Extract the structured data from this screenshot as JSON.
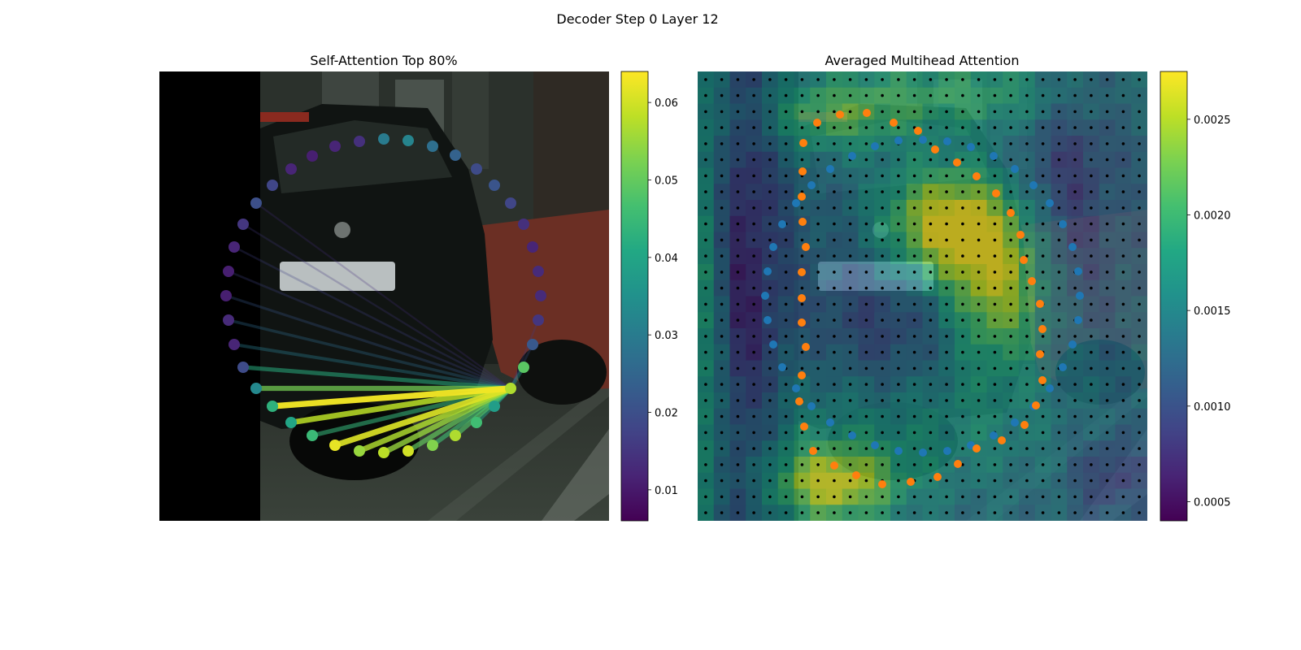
{
  "suptitle": "Decoder Step 0 Layer 12",
  "colors": {
    "viridis": [
      "#440154",
      "#482475",
      "#414487",
      "#355f8d",
      "#2a788e",
      "#21918c",
      "#22a884",
      "#44bf70",
      "#7ad151",
      "#bddf26",
      "#fde725"
    ],
    "blue_points": "#1f77b4",
    "orange_points": "#ff7f0e",
    "grid_dots": "#000000"
  },
  "chart_data": [
    {
      "type": "scatter",
      "title": "Self-Attention Top 80%",
      "background": "photo",
      "colorbar": {
        "min": 0.006,
        "max": 0.064,
        "ticks": [
          0.01,
          0.02,
          0.03,
          0.04,
          0.05,
          0.06
        ],
        "tick_labels": [
          "0.01",
          "0.02",
          "0.03",
          "0.04",
          "0.05",
          "0.06"
        ]
      },
      "query_index": 29,
      "points": [
        {
          "x": 335,
          "y": 228,
          "v": 0.018
        },
        {
          "x": 358,
          "y": 208,
          "v": 0.012
        },
        {
          "x": 384,
          "y": 192,
          "v": 0.011
        },
        {
          "x": 412,
          "y": 180,
          "v": 0.012
        },
        {
          "x": 442,
          "y": 174,
          "v": 0.014
        },
        {
          "x": 472,
          "y": 171,
          "v": 0.03
        },
        {
          "x": 502,
          "y": 173,
          "v": 0.032
        },
        {
          "x": 532,
          "y": 180,
          "v": 0.027
        },
        {
          "x": 560,
          "y": 191,
          "v": 0.024
        },
        {
          "x": 586,
          "y": 208,
          "v": 0.019
        },
        {
          "x": 608,
          "y": 228,
          "v": 0.021
        },
        {
          "x": 628,
          "y": 250,
          "v": 0.018
        },
        {
          "x": 644,
          "y": 276,
          "v": 0.014
        },
        {
          "x": 655,
          "y": 304,
          "v": 0.012
        },
        {
          "x": 662,
          "y": 334,
          "v": 0.013
        },
        {
          "x": 665,
          "y": 364,
          "v": 0.013
        },
        {
          "x": 662,
          "y": 394,
          "v": 0.015
        },
        {
          "x": 655,
          "y": 424,
          "v": 0.022
        },
        {
          "x": 315,
          "y": 250,
          "v": 0.02
        },
        {
          "x": 299,
          "y": 276,
          "v": 0.015
        },
        {
          "x": 288,
          "y": 304,
          "v": 0.012
        },
        {
          "x": 281,
          "y": 334,
          "v": 0.011
        },
        {
          "x": 278,
          "y": 364,
          "v": 0.011
        },
        {
          "x": 281,
          "y": 394,
          "v": 0.013
        },
        {
          "x": 288,
          "y": 424,
          "v": 0.012
        },
        {
          "x": 299,
          "y": 452,
          "v": 0.019
        },
        {
          "x": 315,
          "y": 478,
          "v": 0.033
        },
        {
          "x": 335,
          "y": 500,
          "v": 0.043
        },
        {
          "x": 358,
          "y": 520,
          "v": 0.04
        },
        {
          "x": 628,
          "y": 478,
          "v": 0.057
        },
        {
          "x": 644,
          "y": 452,
          "v": 0.049
        },
        {
          "x": 608,
          "y": 500,
          "v": 0.038
        },
        {
          "x": 586,
          "y": 520,
          "v": 0.046
        },
        {
          "x": 560,
          "y": 536,
          "v": 0.057
        },
        {
          "x": 532,
          "y": 548,
          "v": 0.053
        },
        {
          "x": 502,
          "y": 555,
          "v": 0.06
        },
        {
          "x": 472,
          "y": 557,
          "v": 0.058
        },
        {
          "x": 442,
          "y": 555,
          "v": 0.055
        },
        {
          "x": 412,
          "y": 548,
          "v": 0.062
        },
        {
          "x": 384,
          "y": 536,
          "v": 0.045
        }
      ],
      "edges": [
        {
          "to": 27,
          "v": 0.063
        },
        {
          "to": 28,
          "v": 0.058
        },
        {
          "to": 26,
          "v": 0.052
        },
        {
          "to": 38,
          "v": 0.061
        },
        {
          "to": 37,
          "v": 0.057
        },
        {
          "to": 36,
          "v": 0.055
        },
        {
          "to": 35,
          "v": 0.05
        },
        {
          "to": 34,
          "v": 0.046
        },
        {
          "to": 33,
          "v": 0.048
        },
        {
          "to": 39,
          "v": 0.044
        },
        {
          "to": 32,
          "v": 0.04
        },
        {
          "to": 31,
          "v": 0.036
        },
        {
          "to": 25,
          "v": 0.042
        },
        {
          "to": 24,
          "v": 0.03
        },
        {
          "to": 23,
          "v": 0.026
        },
        {
          "to": 22,
          "v": 0.022
        },
        {
          "to": 21,
          "v": 0.018
        },
        {
          "to": 20,
          "v": 0.017
        },
        {
          "to": 19,
          "v": 0.015
        },
        {
          "to": 18,
          "v": 0.014
        },
        {
          "to": 17,
          "v": 0.02
        },
        {
          "to": 16,
          "v": 0.016
        },
        {
          "to": 30,
          "v": 0.034
        }
      ]
    },
    {
      "type": "heatmap",
      "title": "Averaged Multihead Attention",
      "background": "photo",
      "colorbar": {
        "min": 0.0004,
        "max": 0.00275,
        "ticks": [
          0.0005,
          0.001,
          0.0015,
          0.002,
          0.0025
        ],
        "tick_labels": [
          "0.0005",
          "0.0010",
          "0.0015",
          "0.0020",
          "0.0025"
        ]
      },
      "grid_size": 28,
      "hotspots": [
        {
          "cx": 0.55,
          "cy": 0.34,
          "sx": 0.1,
          "sy": 0.09,
          "w": 1.0
        },
        {
          "cx": 0.67,
          "cy": 0.48,
          "sx": 0.08,
          "sy": 0.12,
          "w": 0.8
        },
        {
          "cx": 0.3,
          "cy": 0.1,
          "sx": 0.12,
          "sy": 0.06,
          "w": 0.5
        },
        {
          "cx": 0.3,
          "cy": 0.92,
          "sx": 0.1,
          "sy": 0.06,
          "w": 0.85
        },
        {
          "cx": 0.6,
          "cy": 0.05,
          "sx": 0.2,
          "sy": 0.06,
          "w": 0.45
        },
        {
          "cx": 0.02,
          "cy": 0.5,
          "sx": 0.03,
          "sy": 0.45,
          "w": 0.45
        },
        {
          "cx": 0.45,
          "cy": 0.78,
          "sx": 0.25,
          "sy": 0.12,
          "w": 0.35
        }
      ],
      "lows": [
        {
          "cx": 0.1,
          "cy": 0.5,
          "sx": 0.06,
          "sy": 0.4,
          "w": 0.55
        },
        {
          "cx": 0.42,
          "cy": 0.6,
          "sx": 0.12,
          "sy": 0.15,
          "w": 0.4
        },
        {
          "cx": 0.82,
          "cy": 0.25,
          "sx": 0.07,
          "sy": 0.2,
          "w": 0.4
        },
        {
          "cx": 0.92,
          "cy": 0.9,
          "sx": 0.06,
          "sy": 0.06,
          "w": 0.45
        }
      ],
      "blue_points": [
        [
          998,
          228
        ],
        [
          1021,
          208
        ],
        [
          1048,
          192
        ],
        [
          1076,
          180
        ],
        [
          1105,
          173
        ],
        [
          1135,
          172
        ],
        [
          1165,
          174
        ],
        [
          1194,
          181
        ],
        [
          1222,
          192
        ],
        [
          1248,
          208
        ],
        [
          1271,
          228
        ],
        [
          1291,
          250
        ],
        [
          1307,
          276
        ],
        [
          1319,
          304
        ],
        [
          1326,
          334
        ],
        [
          1328,
          364
        ],
        [
          1326,
          394
        ],
        [
          1319,
          424
        ],
        [
          1307,
          452
        ],
        [
          1291,
          478
        ],
        [
          1271,
          500
        ],
        [
          1248,
          520
        ],
        [
          1222,
          536
        ],
        [
          1194,
          548
        ],
        [
          1165,
          555
        ],
        [
          1135,
          557
        ],
        [
          1105,
          555
        ],
        [
          1076,
          548
        ],
        [
          1048,
          536
        ],
        [
          1021,
          520
        ],
        [
          998,
          500
        ],
        [
          979,
          478
        ],
        [
          962,
          452
        ],
        [
          951,
          424
        ],
        [
          944,
          394
        ],
        [
          941,
          364
        ],
        [
          944,
          334
        ],
        [
          951,
          304
        ],
        [
          962,
          276
        ],
        [
          979,
          250
        ]
      ],
      "orange_points": [
        [
          1005,
          151
        ],
        [
          1033,
          141
        ],
        [
          1066,
          139
        ],
        [
          1099,
          151
        ],
        [
          1129,
          161
        ],
        [
          1150,
          184
        ],
        [
          1177,
          200
        ],
        [
          1201,
          217
        ],
        [
          1225,
          238
        ],
        [
          1243,
          262
        ],
        [
          1255,
          289
        ],
        [
          1259,
          320
        ],
        [
          1269,
          346
        ],
        [
          1279,
          374
        ],
        [
          1282,
          405
        ],
        [
          1279,
          436
        ],
        [
          1282,
          468
        ],
        [
          1274,
          499
        ],
        [
          1260,
          523
        ],
        [
          1232,
          542
        ],
        [
          1201,
          552
        ],
        [
          1178,
          571
        ],
        [
          1153,
          587
        ],
        [
          1120,
          593
        ],
        [
          1085,
          596
        ],
        [
          1053,
          585
        ],
        [
          1026,
          573
        ],
        [
          1000,
          555
        ],
        [
          989,
          525
        ],
        [
          983,
          494
        ],
        [
          986,
          462
        ],
        [
          991,
          427
        ],
        [
          986,
          397
        ],
        [
          986,
          367
        ],
        [
          986,
          335
        ],
        [
          991,
          304
        ],
        [
          987,
          273
        ],
        [
          986,
          242
        ],
        [
          987,
          211
        ],
        [
          988,
          176
        ]
      ]
    }
  ]
}
